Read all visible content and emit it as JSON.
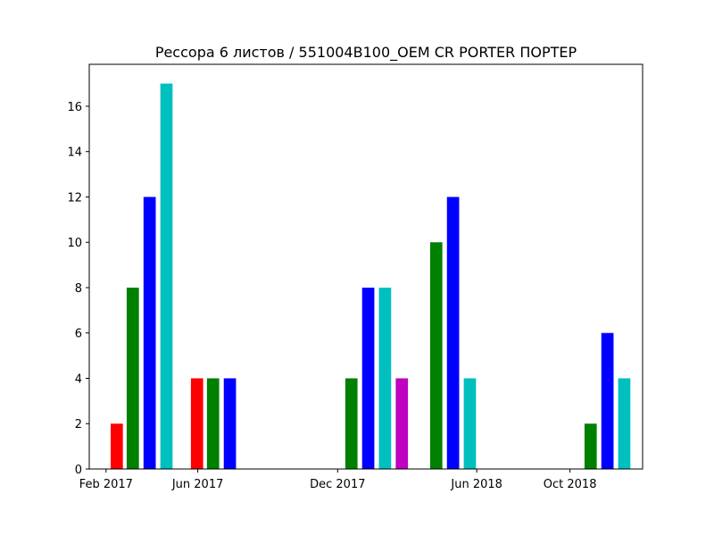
{
  "chart_data": {
    "type": "bar",
    "title": "Рессора 6 листов / 551004B100_OEM CR PORTER ПОРТЕР",
    "xlabel": "",
    "ylabel": "",
    "ylim": [
      0,
      17.85
    ],
    "yticks": [
      0,
      2,
      4,
      6,
      8,
      10,
      12,
      14,
      16
    ],
    "xlim": [
      "2017-01-10",
      "2019-01-04"
    ],
    "xticks": [
      {
        "date": "2017-02-01",
        "label": "Feb 2017"
      },
      {
        "date": "2017-06-01",
        "label": "Jun 2017"
      },
      {
        "date": "2017-12-01",
        "label": "Dec 2017"
      },
      {
        "date": "2018-06-01",
        "label": "Jun 2018"
      },
      {
        "date": "2018-10-01",
        "label": "Oct 2018"
      }
    ],
    "grid": false,
    "colors_note": "bars colored red, green, blue, cyan, magenta",
    "bars": [
      {
        "date": "2017-02-15",
        "value": 2,
        "color": "#ff0000"
      },
      {
        "date": "2017-03-08",
        "value": 8,
        "color": "#008000"
      },
      {
        "date": "2017-03-30",
        "value": 12,
        "color": "#0000ff"
      },
      {
        "date": "2017-04-21",
        "value": 17,
        "color": "#00bfbf"
      },
      {
        "date": "2017-05-31",
        "value": 4,
        "color": "#ff0000"
      },
      {
        "date": "2017-06-21",
        "value": 4,
        "color": "#008000"
      },
      {
        "date": "2017-07-13",
        "value": 4,
        "color": "#0000ff"
      },
      {
        "date": "2017-12-19",
        "value": 4,
        "color": "#008000"
      },
      {
        "date": "2018-01-10",
        "value": 8,
        "color": "#0000ff"
      },
      {
        "date": "2018-02-01",
        "value": 8,
        "color": "#00bfbf"
      },
      {
        "date": "2018-02-23",
        "value": 4,
        "color": "#bf00bf"
      },
      {
        "date": "2018-04-09",
        "value": 10,
        "color": "#008000"
      },
      {
        "date": "2018-05-01",
        "value": 12,
        "color": "#0000ff"
      },
      {
        "date": "2018-05-23",
        "value": 4,
        "color": "#00bfbf"
      },
      {
        "date": "2018-10-28",
        "value": 2,
        "color": "#008000"
      },
      {
        "date": "2018-11-19",
        "value": 6,
        "color": "#0000ff"
      },
      {
        "date": "2018-12-11",
        "value": 4,
        "color": "#00bfbf"
      }
    ]
  }
}
